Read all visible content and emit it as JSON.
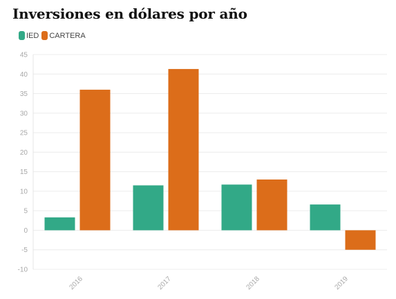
{
  "chart_data": {
    "type": "bar",
    "title": "Inversiones en dólares por año",
    "categories": [
      "2016",
      "2017",
      "2018",
      "2019"
    ],
    "series": [
      {
        "name": "IED",
        "color": "#32a987",
        "values": [
          3.3,
          11.5,
          11.7,
          6.6
        ]
      },
      {
        "name": "CARTERA",
        "color": "#dc6d1a",
        "values": [
          36.0,
          41.3,
          13.0,
          -5.0
        ]
      }
    ],
    "xlabel": "",
    "ylabel": "",
    "ylim": [
      -10,
      45
    ],
    "yticks": [
      45,
      40,
      35,
      30,
      25,
      20,
      15,
      10,
      5,
      0,
      -5,
      -10
    ],
    "grid": true,
    "legend_position": "top-left"
  }
}
